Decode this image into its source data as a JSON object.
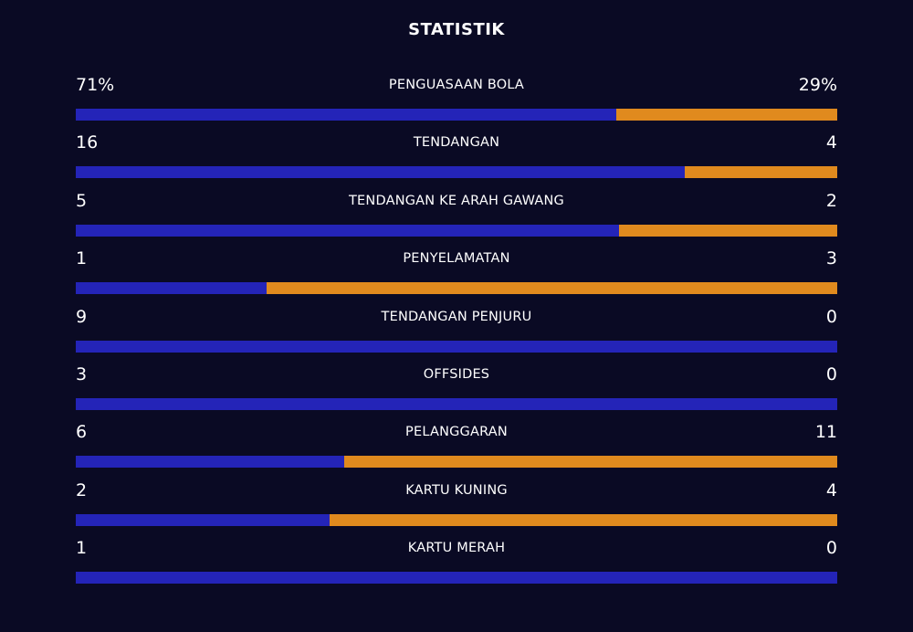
{
  "title": "STATISTIK",
  "colors": {
    "home": "#2424b8",
    "away": "#e08a1e",
    "background": "#0a0a24"
  },
  "stats": [
    {
      "label": "PENGUASAAN BOLA",
      "home": "71%",
      "away": "29%",
      "home_share": 0.71
    },
    {
      "label": "TENDANGAN",
      "home": "16",
      "away": "4",
      "home_share": 0.8
    },
    {
      "label": "TENDANGAN KE ARAH GAWANG",
      "home": "5",
      "away": "2",
      "home_share": 0.714
    },
    {
      "label": "PENYELAMATAN",
      "home": "1",
      "away": "3",
      "home_share": 0.25
    },
    {
      "label": "TENDANGAN PENJURU",
      "home": "9",
      "away": "0",
      "home_share": 1.0
    },
    {
      "label": "OFFSIDES",
      "home": "3",
      "away": "0",
      "home_share": 1.0
    },
    {
      "label": "PELANGGARAN",
      "home": "6",
      "away": "11",
      "home_share": 0.353
    },
    {
      "label": "KARTU KUNING",
      "home": "2",
      "away": "4",
      "home_share": 0.333
    },
    {
      "label": "KARTU MERAH",
      "home": "1",
      "away": "0",
      "home_share": 1.0
    }
  ]
}
